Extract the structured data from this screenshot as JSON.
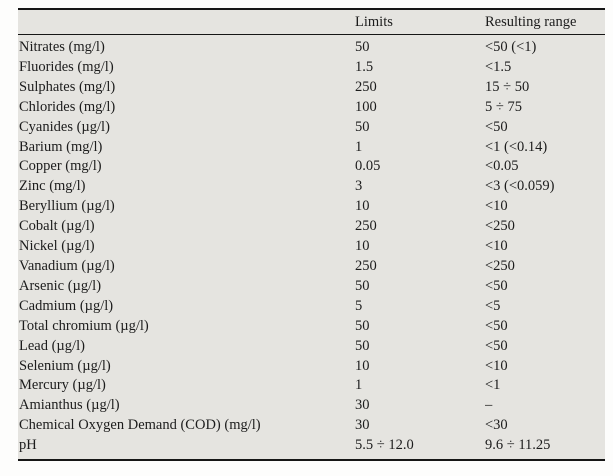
{
  "page": {
    "background_color": "#fdfdfc",
    "table_background_color": "#e5e4e0",
    "rule_color": "#161616",
    "text_color": "#1c1c1c"
  },
  "table": {
    "headers": {
      "parameter": "",
      "limits": "Limits",
      "resulting_range": "Resulting range"
    },
    "rows": [
      {
        "parameter": "Nitrates (mg/l)",
        "limit": "50",
        "range": "<50 (<1)"
      },
      {
        "parameter": "Fluorides (mg/l)",
        "limit": "1.5",
        "range": "<1.5"
      },
      {
        "parameter": "Sulphates (mg/l)",
        "limit": "250",
        "range": "15 ÷ 50"
      },
      {
        "parameter": "Chlorides (mg/l)",
        "limit": "100",
        "range": "5 ÷ 75"
      },
      {
        "parameter": "Cyanides (µg/l)",
        "limit": "50",
        "range": "<50"
      },
      {
        "parameter": "Barium (mg/l)",
        "limit": "1",
        "range": "<1 (<0.14)"
      },
      {
        "parameter": "Copper (mg/l)",
        "limit": "0.05",
        "range": "<0.05"
      },
      {
        "parameter": "Zinc (mg/l)",
        "limit": "3",
        "range": "<3 (<0.059)"
      },
      {
        "parameter": "Beryllium (µg/l)",
        "limit": "10",
        "range": "<10"
      },
      {
        "parameter": "Cobalt (µg/l)",
        "limit": "250",
        "range": "<250"
      },
      {
        "parameter": "Nickel (µg/l)",
        "limit": "10",
        "range": "<10"
      },
      {
        "parameter": "Vanadium (µg/l)",
        "limit": "250",
        "range": "<250"
      },
      {
        "parameter": "Arsenic (µg/l)",
        "limit": "50",
        "range": "<50"
      },
      {
        "parameter": "Cadmium (µg/l)",
        "limit": "5",
        "range": "<5"
      },
      {
        "parameter": "Total chromium (µg/l)",
        "limit": "50",
        "range": "<50"
      },
      {
        "parameter": "Lead (µg/l)",
        "limit": "50",
        "range": "<50"
      },
      {
        "parameter": "Selenium (µg/l)",
        "limit": "10",
        "range": "<10"
      },
      {
        "parameter": "Mercury (µg/l)",
        "limit": "1",
        "range": "<1"
      },
      {
        "parameter": "Amianthus (µg/l)",
        "limit": "30",
        "range": "–"
      },
      {
        "parameter": "Chemical Oxygen Demand (COD) (mg/l)",
        "limit": "30",
        "range": "<30"
      },
      {
        "parameter": "pH",
        "limit": "5.5 ÷ 12.0",
        "range": "9.6 ÷ 11.25"
      }
    ]
  }
}
